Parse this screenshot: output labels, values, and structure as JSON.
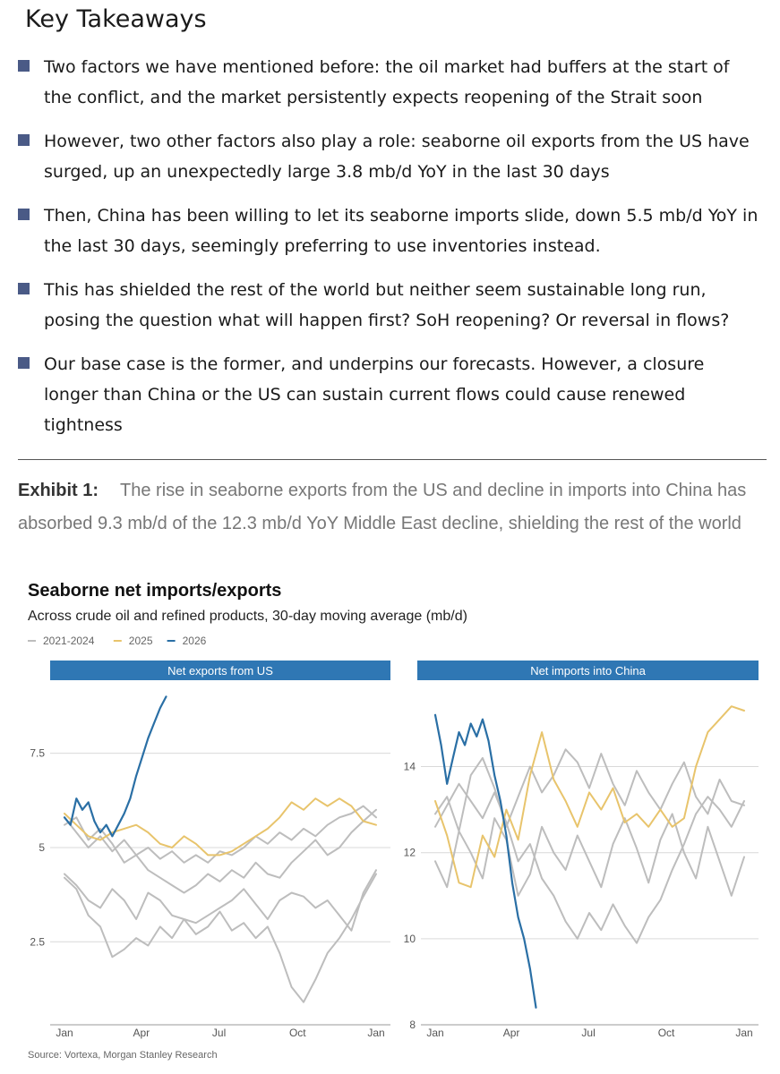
{
  "takeaways": {
    "title": "Key Takeaways",
    "bullets": [
      "Two factors we have mentioned before: the oil market had buffers at the start of the conflict, and the market persistently expects reopening of the Strait soon",
      "However, two other factors also play a role: seaborne oil exports from the US have surged, up an unexpectedly large 3.8 mb/d YoY in the last 30 days",
      "Then, China has been willing to let its seaborne imports slide, down 5.5 mb/d YoY in the last 30 days, seemingly preferring to use inventories instead.",
      "This has shielded the rest of the world but neither seem sustainable long run, posing the question what will happen first? SoH reopening? Or reversal in flows?",
      "Our base case is the former, and underpins our forecasts. However, a closure longer than China or the US can sustain current flows could cause renewed tightness"
    ]
  },
  "exhibit": {
    "label": "Exhibit 1:",
    "caption": "The rise in seaborne exports from the US and decline in imports into China has absorbed 9.3 mb/d of the 12.3 mb/d YoY Middle East decline, shielding the rest of the world"
  },
  "chart": {
    "title": "Seaborne net imports/exports",
    "subtitle": "Across crude oil and refined products, 30-day moving average (mb/d)",
    "source": "Source: Vortexa, Morgan Stanley Research"
  },
  "colors": {
    "series_2021_2024": "#bdbdbd",
    "series_2025": "#e8c46c",
    "series_2026": "#2a6fa5",
    "panel_header": "#2f77b4",
    "grid": "#d9d9d9"
  },
  "chart_data": [
    {
      "type": "line",
      "title": "Net exports from US",
      "x_ticks": [
        "Jan",
        "Apr",
        "Jul",
        "Oct",
        "Jan"
      ],
      "y_ticks": [
        2.5,
        5.0,
        7.5
      ],
      "ylim": [
        0.3,
        9.2
      ],
      "legend": [
        "2021-2024",
        "2025",
        "2026"
      ],
      "series": [
        {
          "name": "2021-2024",
          "x": [
            0,
            14,
            28,
            42,
            56,
            70,
            84,
            98,
            112,
            126,
            140,
            154,
            168,
            182,
            196,
            210,
            224,
            238,
            252,
            266,
            280,
            294,
            308,
            322,
            336,
            350,
            365
          ],
          "values": [
            4.2,
            3.9,
            3.2,
            2.9,
            2.1,
            2.3,
            2.6,
            2.4,
            2.9,
            2.6,
            3.1,
            2.7,
            2.9,
            3.3,
            2.8,
            3.0,
            2.6,
            2.9,
            2.2,
            1.3,
            0.9,
            1.5,
            2.2,
            2.6,
            3.1,
            3.7,
            4.3
          ]
        },
        {
          "name": "2021-2024",
          "x": [
            0,
            14,
            28,
            42,
            56,
            70,
            84,
            98,
            112,
            126,
            140,
            154,
            168,
            182,
            196,
            210,
            224,
            238,
            252,
            266,
            280,
            294,
            308,
            322,
            336,
            350,
            365
          ],
          "values": [
            4.3,
            4.0,
            3.6,
            3.4,
            3.9,
            3.6,
            3.1,
            3.8,
            3.6,
            3.2,
            3.1,
            3.0,
            3.2,
            3.4,
            3.6,
            3.9,
            3.5,
            3.1,
            3.6,
            3.8,
            3.7,
            3.4,
            3.6,
            3.2,
            2.8,
            3.8,
            4.4
          ]
        },
        {
          "name": "2021-2024",
          "x": [
            0,
            14,
            28,
            42,
            56,
            70,
            84,
            98,
            112,
            126,
            140,
            154,
            168,
            182,
            196,
            210,
            224,
            238,
            252,
            266,
            280,
            294,
            308,
            322,
            336,
            350,
            365
          ],
          "values": [
            5.8,
            5.4,
            5.0,
            5.3,
            4.9,
            5.2,
            4.8,
            4.4,
            4.2,
            4.0,
            3.8,
            4.0,
            4.3,
            4.1,
            4.4,
            4.2,
            4.6,
            4.3,
            4.2,
            4.6,
            4.9,
            5.2,
            4.8,
            5.0,
            5.4,
            5.7,
            6.0
          ]
        },
        {
          "name": "2021-2024",
          "x": [
            0,
            14,
            28,
            42,
            56,
            70,
            84,
            98,
            112,
            126,
            140,
            154,
            168,
            182,
            196,
            210,
            224,
            238,
            252,
            266,
            280,
            294,
            308,
            322,
            336,
            350,
            365
          ],
          "values": [
            5.6,
            5.8,
            5.2,
            5.5,
            5.1,
            4.6,
            4.8,
            5.0,
            4.7,
            4.9,
            4.6,
            4.8,
            4.6,
            4.9,
            4.8,
            5.0,
            5.3,
            5.1,
            5.4,
            5.2,
            5.5,
            5.3,
            5.6,
            5.8,
            5.9,
            6.1,
            5.8
          ]
        },
        {
          "name": "2025",
          "x": [
            0,
            14,
            28,
            42,
            56,
            70,
            84,
            98,
            112,
            126,
            140,
            154,
            168,
            182,
            196,
            210,
            224,
            238,
            252,
            266,
            280,
            294,
            308,
            322,
            336,
            350,
            365
          ],
          "values": [
            5.9,
            5.6,
            5.3,
            5.2,
            5.4,
            5.5,
            5.6,
            5.4,
            5.1,
            5.0,
            5.3,
            5.1,
            4.8,
            4.8,
            4.9,
            5.1,
            5.3,
            5.5,
            5.8,
            6.2,
            6.0,
            6.3,
            6.1,
            6.3,
            6.1,
            5.7,
            5.6
          ]
        },
        {
          "name": "2026",
          "x": [
            0,
            7,
            14,
            21,
            28,
            35,
            42,
            49,
            56,
            63,
            70,
            77,
            84,
            91,
            98,
            105,
            112,
            119
          ],
          "values": [
            5.8,
            5.6,
            6.3,
            6.0,
            6.2,
            5.7,
            5.4,
            5.6,
            5.3,
            5.6,
            5.9,
            6.3,
            6.9,
            7.4,
            7.9,
            8.3,
            8.7,
            9.0
          ]
        }
      ]
    },
    {
      "type": "line",
      "title": "Net imports into China",
      "x_ticks": [
        "Jan",
        "Apr",
        "Jul",
        "Oct",
        "Jan"
      ],
      "y_ticks": [
        8,
        10,
        12,
        14
      ],
      "ylim": [
        8,
        15.8
      ],
      "series": [
        {
          "name": "2021-2024",
          "x": [
            0,
            14,
            28,
            42,
            56,
            70,
            84,
            98,
            112,
            126,
            140,
            154,
            168,
            182,
            196,
            210,
            224,
            238,
            252,
            266,
            280,
            294,
            308,
            322,
            336,
            350,
            365
          ],
          "values": [
            11.8,
            11.2,
            12.5,
            12.0,
            11.4,
            12.8,
            12.3,
            11.0,
            11.5,
            12.6,
            12.0,
            11.6,
            12.4,
            11.8,
            11.2,
            12.2,
            12.8,
            12.1,
            11.3,
            12.3,
            12.9,
            12.0,
            11.4,
            12.6,
            11.8,
            11.0,
            11.9
          ]
        },
        {
          "name": "2021-2024",
          "x": [
            0,
            14,
            28,
            42,
            56,
            70,
            84,
            98,
            112,
            126,
            140,
            154,
            168,
            182,
            196,
            210,
            224,
            238,
            252,
            266,
            280,
            294,
            308,
            322,
            336,
            350,
            365
          ],
          "values": [
            12.6,
            13.1,
            13.6,
            13.2,
            12.8,
            13.4,
            12.7,
            11.8,
            12.2,
            11.4,
            11.0,
            10.4,
            10.0,
            10.6,
            10.2,
            10.8,
            10.3,
            9.9,
            10.5,
            10.9,
            11.6,
            12.2,
            12.9,
            13.3,
            13.0,
            12.6,
            13.2
          ]
        },
        {
          "name": "2021-2024",
          "x": [
            0,
            14,
            28,
            42,
            56,
            70,
            84,
            98,
            112,
            126,
            140,
            154,
            168,
            182,
            196,
            210,
            224,
            238,
            252,
            266,
            280,
            294,
            308,
            322,
            336,
            350,
            365
          ],
          "values": [
            12.9,
            13.3,
            12.5,
            13.8,
            14.2,
            13.5,
            12.6,
            13.3,
            14.0,
            13.4,
            13.8,
            14.4,
            14.1,
            13.5,
            14.3,
            13.6,
            13.1,
            13.9,
            13.4,
            13.0,
            13.6,
            14.1,
            13.3,
            12.9,
            13.7,
            13.2,
            13.1
          ]
        },
        {
          "name": "2025",
          "x": [
            0,
            14,
            28,
            42,
            56,
            70,
            84,
            98,
            112,
            126,
            140,
            154,
            168,
            182,
            196,
            210,
            224,
            238,
            252,
            266,
            280,
            294,
            308,
            322,
            336,
            350,
            365
          ],
          "values": [
            13.2,
            12.4,
            11.3,
            11.2,
            12.4,
            11.9,
            13.0,
            12.3,
            13.8,
            14.8,
            13.7,
            13.2,
            12.6,
            13.4,
            13.0,
            13.5,
            12.7,
            12.9,
            12.6,
            13.0,
            12.6,
            12.8,
            14.0,
            14.8,
            15.1,
            15.4,
            15.3
          ]
        },
        {
          "name": "2026",
          "x": [
            0,
            7,
            14,
            21,
            28,
            35,
            42,
            49,
            56,
            63,
            70,
            77,
            84,
            91,
            98,
            105,
            112,
            119
          ],
          "values": [
            15.2,
            14.5,
            13.6,
            14.2,
            14.8,
            14.5,
            15.0,
            14.7,
            15.1,
            14.6,
            13.8,
            13.2,
            12.4,
            11.3,
            10.5,
            10.0,
            9.3,
            8.4
          ]
        }
      ]
    }
  ]
}
